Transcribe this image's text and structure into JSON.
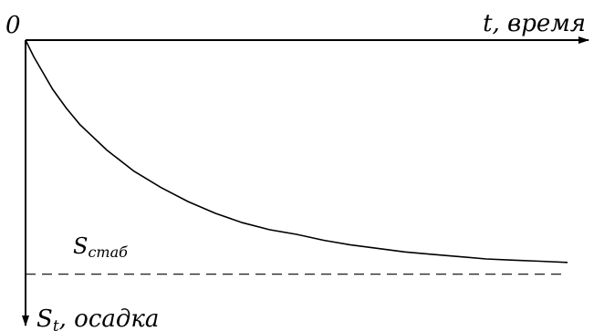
{
  "chart_data": {
    "type": "line",
    "origin_label": "0",
    "x_axis_label": "t, время",
    "y_axis_label": {
      "symbol": "S",
      "subscript": "t",
      "rest": ", осадка"
    },
    "asymptote_label": {
      "symbol": "S",
      "subscript": "стаб"
    },
    "y_inverted": true,
    "xlim": [
      0,
      10
    ],
    "ylim": [
      0,
      1.2
    ],
    "asymptote_value": 1.0,
    "series": [
      {
        "x": [
          0,
          0.15,
          0.3,
          0.5,
          0.75,
          1,
          1.5,
          2,
          2.5,
          3,
          3.5,
          4,
          4.5,
          5,
          5.5,
          6,
          6.5,
          7,
          7.5,
          8,
          8.5,
          9,
          9.5,
          10
        ],
        "values": [
          0,
          0.07,
          0.13,
          0.21,
          0.29,
          0.36,
          0.47,
          0.56,
          0.63,
          0.69,
          0.74,
          0.78,
          0.81,
          0.83,
          0.855,
          0.875,
          0.89,
          0.905,
          0.915,
          0.925,
          0.935,
          0.94,
          0.945,
          0.95
        ]
      }
    ],
    "colors": {
      "line": "#000000",
      "background": "#ffffff"
    }
  }
}
